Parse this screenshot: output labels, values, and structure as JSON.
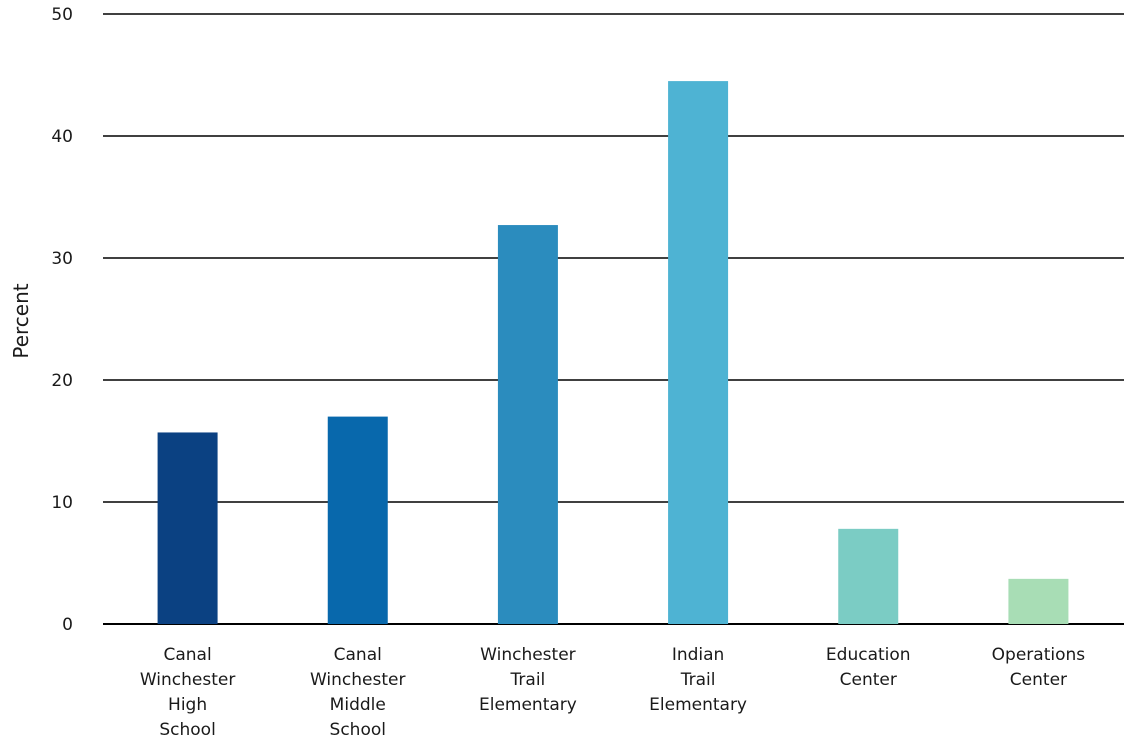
{
  "chart_data": {
    "type": "bar",
    "categories": [
      [
        "Canal",
        "Winchester",
        "High",
        "School"
      ],
      [
        "Canal",
        "Winchester",
        "Middle",
        "School"
      ],
      [
        "Winchester",
        "Trail",
        "Elementary"
      ],
      [
        "Indian",
        "Trail",
        "Elementary"
      ],
      [
        "Education",
        "Center"
      ],
      [
        "Operations",
        "Center"
      ]
    ],
    "values": [
      15.7,
      17.0,
      32.7,
      44.5,
      7.8,
      3.7
    ],
    "colors": [
      "#0b4182",
      "#0868ac",
      "#2b8cbe",
      "#4eb3d3",
      "#7bccc4",
      "#a8ddb5"
    ],
    "ylabel": "Percent",
    "xlabel": "",
    "ylim": [
      0,
      50
    ],
    "yticks": [
      0,
      10,
      20,
      30,
      40,
      50
    ],
    "grid": true,
    "legend": "none"
  }
}
